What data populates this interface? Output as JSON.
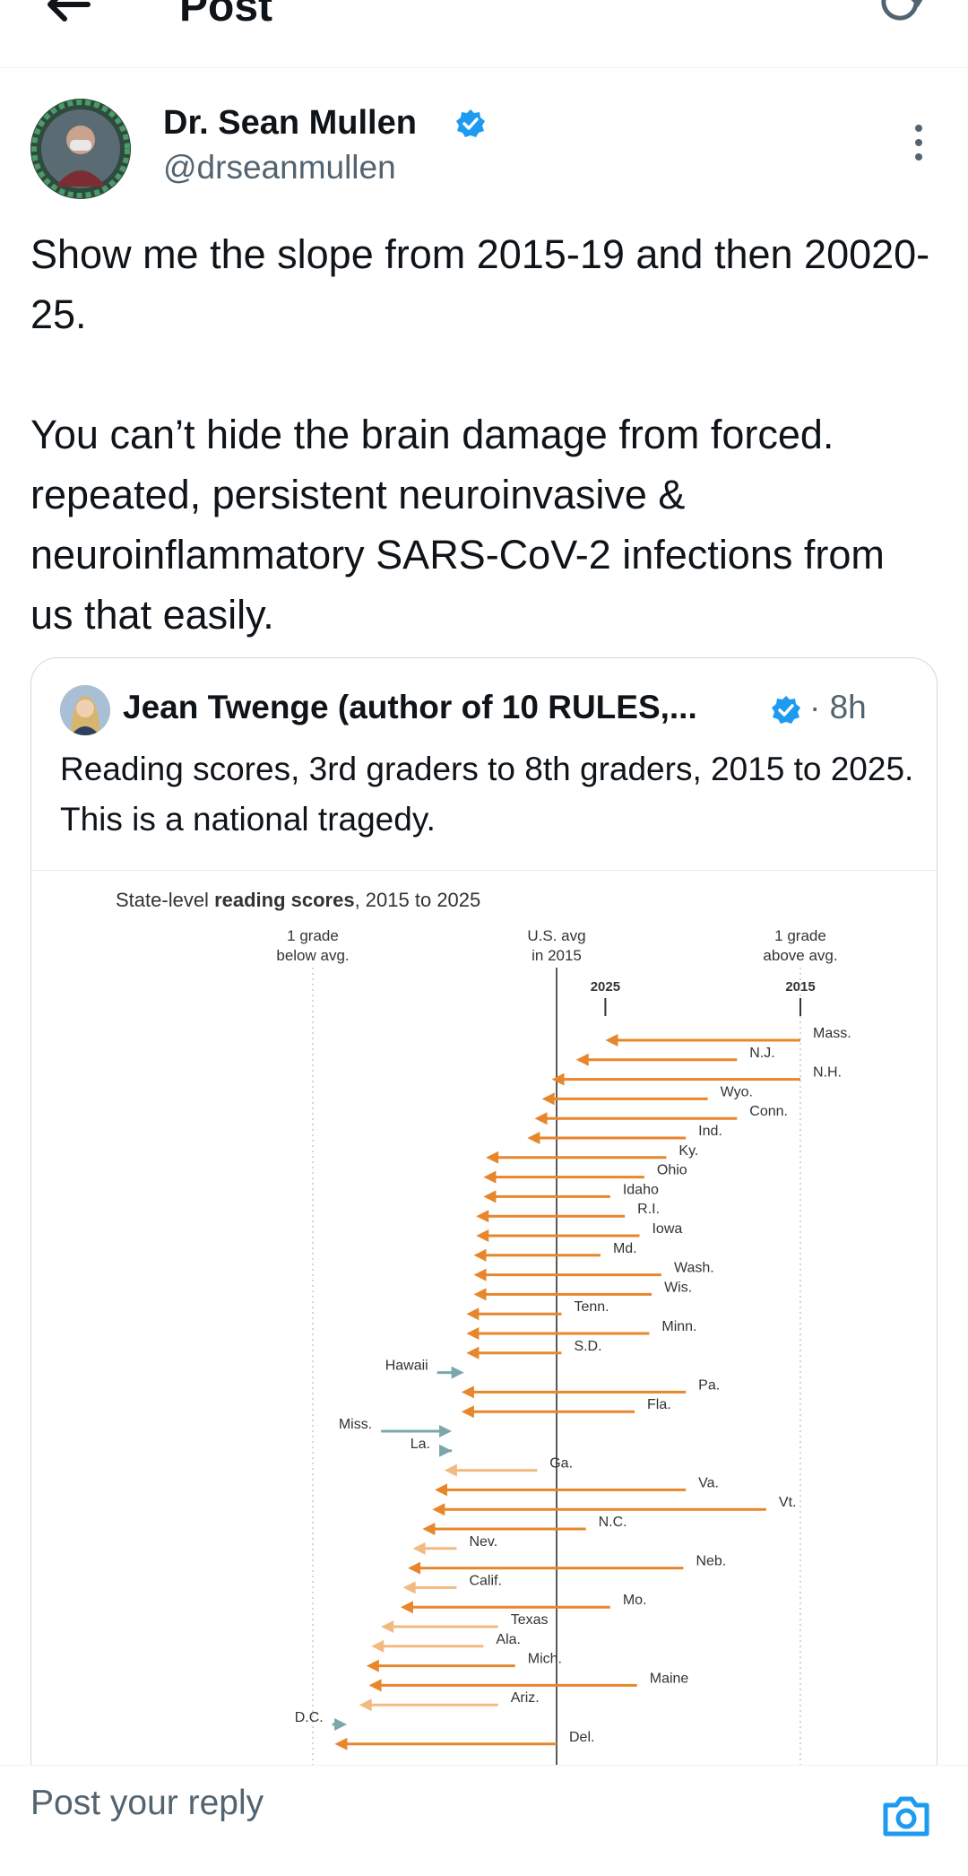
{
  "header": {
    "title": "Post",
    "back_icon": "arrow-left-icon",
    "refresh_icon": "refresh-icon"
  },
  "author": {
    "name": "Dr. Sean Mullen",
    "handle": "@drseanmullen",
    "avatar_icon": "long-covid-awareness-avatar",
    "verified": true
  },
  "post": {
    "text": "Show me the slope from 2015-19 and then 20020-25.\n\nYou can’t hide the brain damage from forced. repeated, persistent neuroinvasive & neuroinflammatory SARS-CoV-2 infections from us that easily."
  },
  "quote": {
    "name": "Jean Twenge (author of 10 RULES,...",
    "time": "· 8h",
    "text": "Reading scores, 3rd graders to 8th graders, 2015 to 2025. This is a national tragedy.",
    "verified": true
  },
  "chart_data": {
    "type": "arrow",
    "title_prefix": "State-level ",
    "title_bold": "reading scores",
    "title_suffix": ", 2015 to 2025",
    "header_labels": {
      "below": [
        "1 grade",
        "below avg."
      ],
      "avg": [
        "U.S. avg",
        "in 2015"
      ],
      "above": [
        "1 grade",
        "above avg."
      ]
    },
    "legend": {
      "start_label": "2025",
      "end_label": "2015"
    },
    "x_unit": "grade levels relative to 2015 U.S. average",
    "xlim": [
      -1,
      1
    ],
    "colors": {
      "decline": "#e8862b",
      "gain": "#7aa7a9",
      "decline_light": "#f3b983"
    },
    "states": [
      {
        "name": "Mass.",
        "from": 1.0,
        "to": 0.2
      },
      {
        "name": "N.J.",
        "from": 0.74,
        "to": 0.08
      },
      {
        "name": "N.H.",
        "from": 1.0,
        "to": -0.02
      },
      {
        "name": "Wyo.",
        "from": 0.62,
        "to": -0.06
      },
      {
        "name": "Conn.",
        "from": 0.74,
        "to": -0.09
      },
      {
        "name": "Ind.",
        "from": 0.53,
        "to": -0.12
      },
      {
        "name": "Ky.",
        "from": 0.45,
        "to": -0.29
      },
      {
        "name": "Ohio",
        "from": 0.36,
        "to": -0.3
      },
      {
        "name": "Idaho",
        "from": 0.22,
        "to": -0.3
      },
      {
        "name": "R.I.",
        "from": 0.28,
        "to": -0.33
      },
      {
        "name": "Iowa",
        "from": 0.34,
        "to": -0.33
      },
      {
        "name": "Md.",
        "from": 0.18,
        "to": -0.34
      },
      {
        "name": "Wash.",
        "from": 0.43,
        "to": -0.34
      },
      {
        "name": "Wis.",
        "from": 0.39,
        "to": -0.34
      },
      {
        "name": "Tenn.",
        "from": 0.02,
        "to": -0.37
      },
      {
        "name": "Minn.",
        "from": 0.38,
        "to": -0.37
      },
      {
        "name": "S.D.",
        "from": 0.02,
        "to": -0.37
      },
      {
        "name": "Hawaii",
        "from": -0.49,
        "to": -0.38
      },
      {
        "name": "Pa.",
        "from": 0.53,
        "to": -0.39
      },
      {
        "name": "Fla.",
        "from": 0.32,
        "to": -0.39
      },
      {
        "name": "Miss.",
        "from": -0.72,
        "to": -0.43
      },
      {
        "name": "La.",
        "from": -0.43,
        "to": -0.43
      },
      {
        "name": "Ga.",
        "from": -0.08,
        "to": -0.46
      },
      {
        "name": "Va.",
        "from": 0.53,
        "to": -0.5
      },
      {
        "name": "Vt.",
        "from": 0.86,
        "to": -0.51
      },
      {
        "name": "N.C.",
        "from": 0.12,
        "to": -0.55
      },
      {
        "name": "Nev.",
        "from": -0.41,
        "to": -0.59
      },
      {
        "name": "Neb.",
        "from": 0.52,
        "to": -0.61
      },
      {
        "name": "Calif.",
        "from": -0.41,
        "to": -0.63
      },
      {
        "name": "Mo.",
        "from": 0.22,
        "to": -0.64
      },
      {
        "name": "Texas",
        "from": -0.24,
        "to": -0.72
      },
      {
        "name": "Ala.",
        "from": -0.3,
        "to": -0.76
      },
      {
        "name": "Mich.",
        "from": -0.17,
        "to": -0.78
      },
      {
        "name": "Maine",
        "from": 0.33,
        "to": -0.77
      },
      {
        "name": "Ariz.",
        "from": -0.24,
        "to": -0.81
      },
      {
        "name": "D.C.",
        "from": -0.92,
        "to": -0.86
      },
      {
        "name": "Del.",
        "from": 0.0,
        "to": -0.91
      }
    ]
  },
  "reply": {
    "placeholder": "Post your reply",
    "camera_icon": "camera-icon"
  }
}
